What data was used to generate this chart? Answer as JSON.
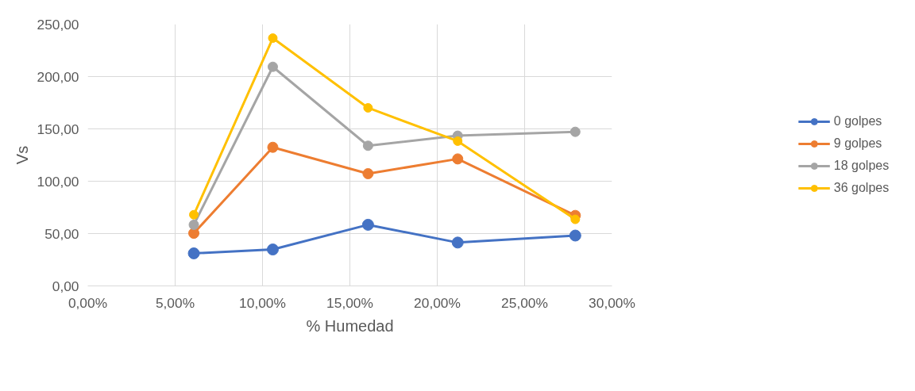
{
  "chart_data": {
    "type": "line",
    "xlabel": "% Humedad",
    "ylabel": "Vs",
    "x": [
      6.07,
      10.59,
      16.04,
      21.17,
      27.9
    ],
    "series": [
      {
        "name": "0 golpes",
        "color": "#4472c4",
        "values": [
          31.1,
          34.8,
          58.4,
          41.4,
          48.1
        ]
      },
      {
        "name": "9 golpes",
        "color": "#ed7d31",
        "values": [
          50.3,
          132.4,
          107.2,
          121.3,
          67.3
        ]
      },
      {
        "name": "18 golpes",
        "color": "#a5a5a5",
        "values": [
          58.4,
          209.3,
          133.9,
          143.5,
          147.2
        ]
      },
      {
        "name": "36 golpes",
        "color": "#ffc000",
        "values": [
          68.0,
          236.7,
          170.1,
          138.3,
          63.6
        ]
      }
    ],
    "xlim": [
      0,
      30
    ],
    "ylim": [
      0,
      250
    ],
    "xticks": [
      {
        "value": 0,
        "label": "0,00%"
      },
      {
        "value": 5,
        "label": "5,00%"
      },
      {
        "value": 10,
        "label": "10,00%"
      },
      {
        "value": 15,
        "label": "15,00%"
      },
      {
        "value": 20,
        "label": "20,00%"
      },
      {
        "value": 25,
        "label": "25,00%"
      },
      {
        "value": 30,
        "label": "30,00%"
      }
    ],
    "yticks": [
      {
        "value": 0,
        "label": "0,00"
      },
      {
        "value": 50,
        "label": "50,00"
      },
      {
        "value": 100,
        "label": "100,00"
      },
      {
        "value": 150,
        "label": "150,00"
      },
      {
        "value": 200,
        "label": "200,00"
      },
      {
        "value": 250,
        "label": "250,00"
      }
    ],
    "grid": true,
    "legend": "right",
    "marker": "circle",
    "line_style": "solid"
  }
}
